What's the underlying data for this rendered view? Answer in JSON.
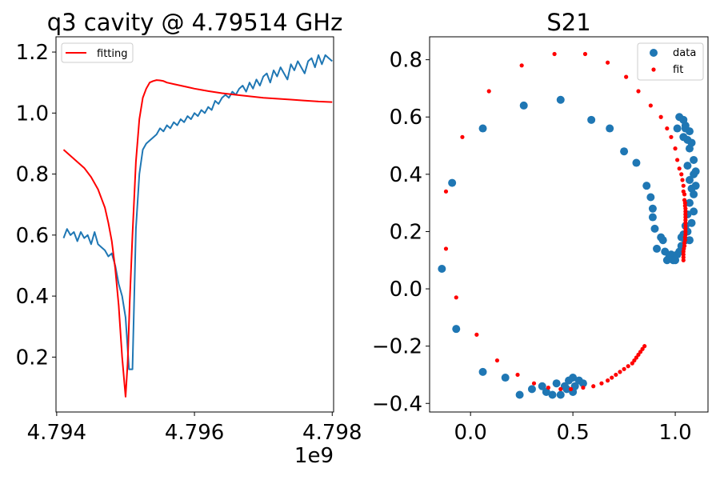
{
  "chart_data": [
    {
      "type": "line",
      "title": "q3 cavity @ 4.79514 GHz",
      "xlabel": "",
      "ylabel": "",
      "x_offset_label": "1e9",
      "xlim": [
        4.79399,
        4.79802
      ],
      "ylim": [
        0.02,
        1.25
      ],
      "xticks": [
        4.794,
        4.796,
        4.798
      ],
      "xtick_labels": [
        "4.794",
        "4.796",
        "4.798"
      ],
      "yticks": [
        0.2,
        0.4,
        0.6,
        0.8,
        1.0,
        1.2
      ],
      "ytick_labels": [
        "0.2",
        "0.4",
        "0.6",
        "0.8",
        "1.0",
        "1.2"
      ],
      "legend": {
        "position": "upper-left",
        "entries": [
          "fitting"
        ]
      },
      "grid": false,
      "series": [
        {
          "name": "",
          "color": "#1f77b4",
          "x": [
            4.7941,
            4.79415,
            4.7942,
            4.79425,
            4.7943,
            4.79435,
            4.7944,
            4.79445,
            4.7945,
            4.79455,
            4.7946,
            4.79465,
            4.7947,
            4.79475,
            4.7948,
            4.79485,
            4.7949,
            4.79495,
            4.795,
            4.79505,
            4.7951,
            4.79515,
            4.7952,
            4.79525,
            4.7953,
            4.79535,
            4.7954,
            4.79545,
            4.7955,
            4.79555,
            4.7956,
            4.79565,
            4.7957,
            4.79575,
            4.7958,
            4.79585,
            4.7959,
            4.79595,
            4.796,
            4.79605,
            4.7961,
            4.79615,
            4.7962,
            4.79625,
            4.7963,
            4.79635,
            4.7964,
            4.79645,
            4.7965,
            4.79655,
            4.7966,
            4.79665,
            4.7967,
            4.79675,
            4.7968,
            4.79685,
            4.7969,
            4.79695,
            4.797,
            4.79705,
            4.7971,
            4.79715,
            4.7972,
            4.79725,
            4.7973,
            4.79735,
            4.7974,
            4.79745,
            4.7975,
            4.79755,
            4.7976,
            4.79765,
            4.7977,
            4.79775,
            4.7978,
            4.79785,
            4.7979,
            4.79795,
            4.798
          ],
          "y": [
            0.59,
            0.62,
            0.6,
            0.61,
            0.58,
            0.61,
            0.59,
            0.6,
            0.57,
            0.61,
            0.57,
            0.56,
            0.55,
            0.53,
            0.54,
            0.5,
            0.44,
            0.4,
            0.33,
            0.16,
            0.16,
            0.62,
            0.8,
            0.88,
            0.9,
            0.91,
            0.92,
            0.93,
            0.95,
            0.94,
            0.96,
            0.95,
            0.97,
            0.96,
            0.98,
            0.97,
            0.99,
            0.98,
            1.0,
            0.99,
            1.01,
            1.0,
            1.02,
            1.01,
            1.04,
            1.03,
            1.05,
            1.06,
            1.05,
            1.07,
            1.06,
            1.08,
            1.09,
            1.07,
            1.1,
            1.08,
            1.11,
            1.09,
            1.12,
            1.13,
            1.1,
            1.14,
            1.12,
            1.15,
            1.13,
            1.11,
            1.16,
            1.14,
            1.17,
            1.15,
            1.13,
            1.17,
            1.18,
            1.15,
            1.19,
            1.16,
            1.19,
            1.18,
            1.17
          ]
        },
        {
          "name": "fitting",
          "color": "#ff0000",
          "x": [
            4.7941,
            4.7942,
            4.7943,
            4.7944,
            4.7945,
            4.7946,
            4.7947,
            4.79475,
            4.7948,
            4.79485,
            4.7949,
            4.79495,
            4.795,
            4.79503,
            4.79506,
            4.7951,
            4.79515,
            4.7952,
            4.79525,
            4.7953,
            4.79535,
            4.7954,
            4.79545,
            4.7955,
            4.79555,
            4.7956,
            4.7957,
            4.7958,
            4.7959,
            4.796,
            4.7962,
            4.7964,
            4.7966,
            4.7968,
            4.797,
            4.7972,
            4.7974,
            4.7976,
            4.7978,
            4.798
          ],
          "y": [
            0.88,
            0.86,
            0.84,
            0.82,
            0.79,
            0.75,
            0.69,
            0.64,
            0.58,
            0.49,
            0.37,
            0.2,
            0.07,
            0.18,
            0.38,
            0.6,
            0.84,
            0.98,
            1.05,
            1.08,
            1.1,
            1.105,
            1.108,
            1.107,
            1.105,
            1.1,
            1.095,
            1.09,
            1.085,
            1.08,
            1.072,
            1.065,
            1.06,
            1.055,
            1.05,
            1.047,
            1.044,
            1.041,
            1.038,
            1.036
          ]
        }
      ]
    },
    {
      "type": "scatter",
      "title": "S21",
      "xlabel": "",
      "ylabel": "",
      "xlim": [
        -0.2,
        1.16
      ],
      "ylim": [
        -0.43,
        0.88
      ],
      "xticks": [
        0.0,
        0.5,
        1.0
      ],
      "xtick_labels": [
        "0.0",
        "0.5",
        "1.0"
      ],
      "yticks": [
        -0.4,
        -0.2,
        0.0,
        0.2,
        0.4,
        0.6,
        0.8
      ],
      "ytick_labels": [
        "−0.4",
        "−0.2",
        "0.0",
        "0.2",
        "0.4",
        "0.6",
        "0.8"
      ],
      "legend": {
        "position": "upper-right",
        "entries": [
          "data",
          "fit"
        ]
      },
      "grid": false,
      "series": [
        {
          "name": "data",
          "color": "#1f77b4",
          "marker_size": "large",
          "points": [
            [
              -0.14,
              0.07
            ],
            [
              -0.09,
              0.37
            ],
            [
              -0.07,
              -0.14
            ],
            [
              0.06,
              0.56
            ],
            [
              0.06,
              -0.29
            ],
            [
              0.17,
              -0.31
            ],
            [
              0.24,
              -0.37
            ],
            [
              0.26,
              0.64
            ],
            [
              0.3,
              -0.35
            ],
            [
              0.35,
              -0.34
            ],
            [
              0.37,
              -0.36
            ],
            [
              0.4,
              -0.37
            ],
            [
              0.42,
              -0.33
            ],
            [
              0.44,
              -0.37
            ],
            [
              0.44,
              0.66
            ],
            [
              0.46,
              -0.34
            ],
            [
              0.47,
              -0.35
            ],
            [
              0.48,
              -0.32
            ],
            [
              0.5,
              -0.36
            ],
            [
              0.5,
              -0.31
            ],
            [
              0.51,
              -0.34
            ],
            [
              0.53,
              -0.32
            ],
            [
              0.55,
              -0.33
            ],
            [
              0.59,
              0.59
            ],
            [
              0.68,
              0.56
            ],
            [
              0.75,
              0.48
            ],
            [
              0.81,
              0.44
            ],
            [
              0.86,
              0.36
            ],
            [
              0.88,
              0.32
            ],
            [
              0.89,
              0.28
            ],
            [
              0.89,
              0.25
            ],
            [
              0.9,
              0.21
            ],
            [
              0.91,
              0.14
            ],
            [
              0.93,
              0.18
            ],
            [
              0.94,
              0.17
            ],
            [
              0.95,
              0.13
            ],
            [
              0.96,
              0.1
            ],
            [
              0.97,
              0.11
            ],
            [
              0.98,
              0.12
            ],
            [
              0.99,
              0.1
            ],
            [
              1.0,
              0.1
            ],
            [
              1.01,
              0.12
            ],
            [
              1.02,
              0.13
            ],
            [
              1.03,
              0.15
            ],
            [
              1.03,
              0.18
            ],
            [
              1.04,
              0.19
            ],
            [
              1.05,
              0.17
            ],
            [
              1.06,
              0.2
            ],
            [
              1.07,
              0.17
            ],
            [
              1.05,
              0.22
            ],
            [
              1.08,
              0.23
            ],
            [
              1.06,
              0.26
            ],
            [
              1.09,
              0.27
            ],
            [
              1.07,
              0.3
            ],
            [
              1.09,
              0.33
            ],
            [
              1.08,
              0.35
            ],
            [
              1.1,
              0.36
            ],
            [
              1.07,
              0.38
            ],
            [
              1.09,
              0.4
            ],
            [
              1.1,
              0.41
            ],
            [
              1.06,
              0.43
            ],
            [
              1.09,
              0.45
            ],
            [
              1.07,
              0.49
            ],
            [
              1.08,
              0.51
            ],
            [
              1.06,
              0.52
            ],
            [
              1.07,
              0.55
            ],
            [
              1.05,
              0.56
            ],
            [
              1.04,
              0.53
            ],
            [
              1.01,
              0.56
            ],
            [
              1.02,
              0.6
            ],
            [
              1.04,
              0.59
            ],
            [
              1.05,
              0.57
            ]
          ]
        },
        {
          "name": "fit",
          "color": "#ff0000",
          "marker_size": "small",
          "points": [
            [
              0.85,
              -0.2
            ],
            [
              0.84,
              -0.21
            ],
            [
              0.83,
              -0.22
            ],
            [
              0.82,
              -0.23
            ],
            [
              0.81,
              -0.24
            ],
            [
              0.8,
              -0.25
            ],
            [
              0.79,
              -0.26
            ],
            [
              0.77,
              -0.27
            ],
            [
              0.75,
              -0.28
            ],
            [
              0.73,
              -0.29
            ],
            [
              0.71,
              -0.3
            ],
            [
              0.69,
              -0.31
            ],
            [
              0.67,
              -0.32
            ],
            [
              0.64,
              -0.33
            ],
            [
              0.6,
              -0.34
            ],
            [
              0.55,
              -0.345
            ],
            [
              0.49,
              -0.35
            ],
            [
              0.44,
              -0.35
            ],
            [
              0.38,
              -0.345
            ],
            [
              0.31,
              -0.33
            ],
            [
              0.23,
              -0.3
            ],
            [
              0.13,
              -0.25
            ],
            [
              0.03,
              -0.16
            ],
            [
              -0.07,
              -0.03
            ],
            [
              -0.12,
              0.14
            ],
            [
              -0.12,
              0.34
            ],
            [
              -0.04,
              0.53
            ],
            [
              0.09,
              0.69
            ],
            [
              0.25,
              0.78
            ],
            [
              0.41,
              0.82
            ],
            [
              0.56,
              0.82
            ],
            [
              0.67,
              0.79
            ],
            [
              0.76,
              0.74
            ],
            [
              0.82,
              0.69
            ],
            [
              0.88,
              0.64
            ],
            [
              0.93,
              0.6
            ],
            [
              0.96,
              0.56
            ],
            [
              0.98,
              0.53
            ],
            [
              1.0,
              0.49
            ],
            [
              1.01,
              0.45
            ],
            [
              1.02,
              0.42
            ],
            [
              1.03,
              0.4
            ],
            [
              1.035,
              0.38
            ],
            [
              1.04,
              0.36
            ],
            [
              1.04,
              0.34
            ],
            [
              1.045,
              0.33
            ],
            [
              1.045,
              0.31
            ],
            [
              1.048,
              0.3
            ],
            [
              1.048,
              0.29
            ],
            [
              1.05,
              0.28
            ],
            [
              1.05,
              0.27
            ],
            [
              1.05,
              0.26
            ],
            [
              1.05,
              0.25
            ],
            [
              1.05,
              0.24
            ],
            [
              1.05,
              0.23
            ],
            [
              1.05,
              0.22
            ],
            [
              1.05,
              0.21
            ],
            [
              1.05,
              0.2
            ],
            [
              1.05,
              0.19
            ],
            [
              1.048,
              0.18
            ],
            [
              1.048,
              0.17
            ],
            [
              1.045,
              0.16
            ],
            [
              1.045,
              0.15
            ],
            [
              1.042,
              0.14
            ],
            [
              1.04,
              0.13
            ],
            [
              1.04,
              0.12
            ],
            [
              1.04,
              0.11
            ],
            [
              1.04,
              0.1
            ]
          ]
        }
      ]
    }
  ]
}
